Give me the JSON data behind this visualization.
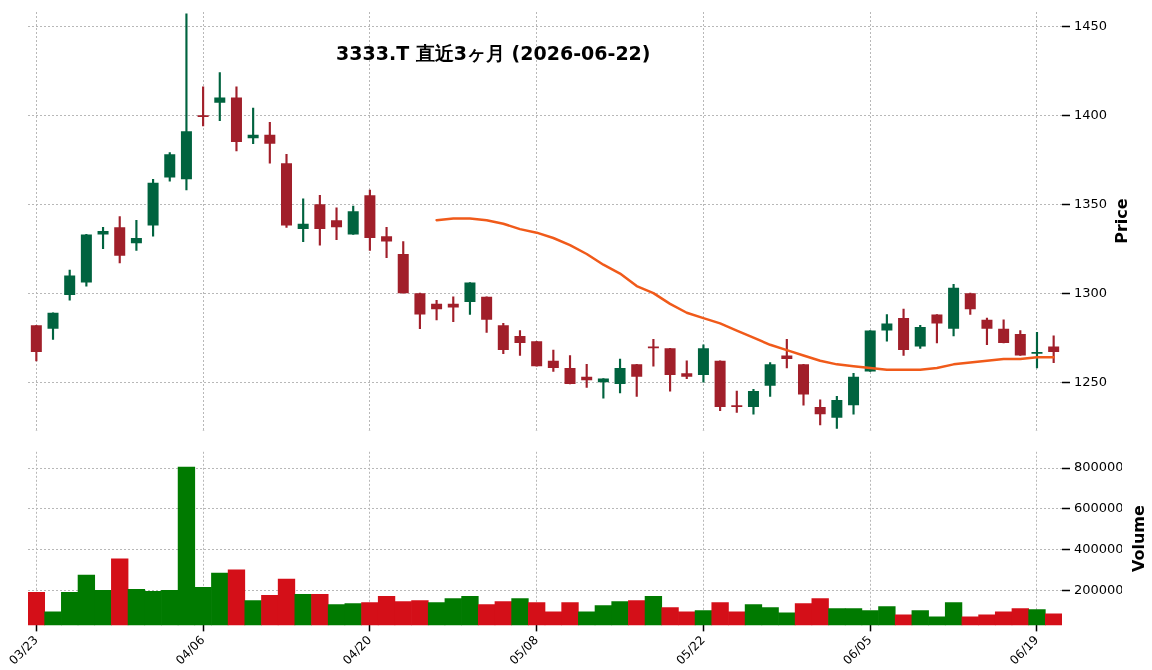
{
  "chart_data": [
    {
      "type": "candlestick",
      "title": "3333.T 直近3ヶ月 (2026-06-22)",
      "ylabel": "Price",
      "categories": [
        null,
        null,
        null,
        null,
        null,
        null,
        null,
        null,
        null,
        null,
        null,
        null,
        null,
        null,
        null,
        null,
        null,
        null,
        null,
        null,
        null,
        null,
        null,
        null,
        null,
        null,
        null,
        null,
        null,
        null,
        null,
        null,
        null,
        null,
        null,
        null,
        null,
        null,
        null,
        null,
        null,
        null,
        null,
        null,
        null,
        null,
        null,
        null,
        null,
        null,
        null,
        null,
        null,
        null,
        null,
        null,
        null,
        null,
        null,
        null,
        null,
        null
      ],
      "ylim": [
        1223,
        1458
      ],
      "yticks": [
        1250,
        1300,
        1350,
        1400,
        1450
      ],
      "grid": true,
      "tick_labels": "y",
      "series": [
        {
          "type": "candlestick",
          "ohlc": [
            [
              1282,
              1282,
              1262,
              1267
            ],
            [
              1280,
              1289,
              1274,
              1289
            ],
            [
              1299,
              1313,
              1296,
              1310
            ],
            [
              1306,
              1333,
              1304,
              1333
            ],
            [
              1333,
              1337,
              1325,
              1335
            ],
            [
              1337,
              1343,
              1317,
              1321
            ],
            [
              1328,
              1341,
              1324,
              1331
            ],
            [
              1338,
              1364,
              1332,
              1362
            ],
            [
              1365,
              1379,
              1363,
              1378
            ],
            [
              1364,
              1457,
              1358,
              1391
            ],
            [
              1400,
              1416,
              1394,
              1399
            ],
            [
              1407,
              1424,
              1397,
              1410
            ],
            [
              1410,
              1416,
              1380,
              1385
            ],
            [
              1387,
              1404,
              1384,
              1389
            ],
            [
              1389,
              1396,
              1373,
              1384
            ],
            [
              1373,
              1378,
              1337,
              1338
            ],
            [
              1336,
              1353,
              1329,
              1339
            ],
            [
              1350,
              1355,
              1327,
              1336
            ],
            [
              1341,
              1348,
              1330,
              1337
            ],
            [
              1333,
              1349,
              1333,
              1346
            ],
            [
              1355,
              1358,
              1324,
              1331
            ],
            [
              1332,
              1337,
              1320,
              1329
            ],
            [
              1322,
              1329,
              1300,
              1300
            ],
            [
              1300,
              1300,
              1280,
              1288
            ],
            [
              1294,
              1296,
              1285,
              1291
            ],
            [
              1294,
              1298,
              1284,
              1292
            ],
            [
              1295,
              1306,
              1288,
              1306
            ],
            [
              1298,
              1298,
              1278,
              1285
            ],
            [
              1282,
              1283,
              1266,
              1268
            ],
            [
              1276,
              1279,
              1265,
              1272
            ],
            [
              1273,
              1273,
              1259,
              1259
            ],
            [
              1262,
              1268,
              1256,
              1258
            ],
            [
              1258,
              1265,
              1249,
              1249
            ],
            [
              1253,
              1260,
              1247,
              1251
            ],
            [
              1250,
              1252,
              1241,
              1252
            ],
            [
              1249,
              1263,
              1244,
              1258
            ],
            [
              1260,
              1260,
              1242,
              1253
            ],
            [
              1270,
              1274,
              1259,
              1269
            ],
            [
              1269,
              1269,
              1245,
              1254
            ],
            [
              1255,
              1262,
              1252,
              1253
            ],
            [
              1254,
              1271,
              1250,
              1269
            ],
            [
              1262,
              1262,
              1234,
              1236
            ],
            [
              1237,
              1245,
              1233,
              1236
            ],
            [
              1236,
              1246,
              1232,
              1245
            ],
            [
              1248,
              1261,
              1242,
              1260
            ],
            [
              1265,
              1274,
              1258,
              1263
            ],
            [
              1260,
              1260,
              1237,
              1243
            ],
            [
              1236,
              1240,
              1226,
              1232
            ],
            [
              1230,
              1242,
              1224,
              1240
            ],
            [
              1237,
              1255,
              1232,
              1253
            ],
            [
              1256,
              1279,
              1256,
              1279
            ],
            [
              1279,
              1288,
              1273,
              1283
            ],
            [
              1286,
              1291,
              1265,
              1268
            ],
            [
              1270,
              1282,
              1269,
              1281
            ],
            [
              1288,
              1288,
              1272,
              1283
            ],
            [
              1280,
              1305,
              1276,
              1303
            ],
            [
              1300,
              1300,
              1288,
              1291
            ],
            [
              1285,
              1286,
              1271,
              1280
            ],
            [
              1280,
              1285,
              1272,
              1272
            ],
            [
              1277,
              1279,
              1265,
              1265
            ],
            [
              1266,
              1278,
              1258,
              1267
            ],
            [
              1270,
              1276,
              1261,
              1267
            ]
          ],
          "colors": [
            "#a11f2a",
            "#00633f",
            "#00633f",
            "#00633f",
            "#00633f",
            "#a11f2a",
            "#00633f",
            "#00633f",
            "#00633f",
            "#00633f",
            "#a11f2a",
            "#00633f",
            "#a11f2a",
            "#00633f",
            "#a11f2a",
            "#a11f2a",
            "#00633f",
            "#a11f2a",
            "#a11f2a",
            "#00633f",
            "#a11f2a",
            "#a11f2a",
            "#a11f2a",
            "#a11f2a",
            "#a11f2a",
            "#a11f2a",
            "#00633f",
            "#a11f2a",
            "#a11f2a",
            "#a11f2a",
            "#a11f2a",
            "#a11f2a",
            "#a11f2a",
            "#a11f2a",
            "#00633f",
            "#00633f",
            "#a11f2a",
            "#a11f2a",
            "#a11f2a",
            "#a11f2a",
            "#00633f",
            "#a11f2a",
            "#a11f2a",
            "#00633f",
            "#00633f",
            "#a11f2a",
            "#a11f2a",
            "#a11f2a",
            "#00633f",
            "#00633f",
            "#00633f",
            "#00633f",
            "#a11f2a",
            "#00633f",
            "#a11f2a",
            "#00633f",
            "#a11f2a",
            "#a11f2a",
            "#a11f2a",
            "#a11f2a",
            "#00633f",
            "#a11f2a"
          ]
        },
        {
          "type": "line",
          "color": "#f05a1a",
          "values": [
            null,
            null,
            null,
            null,
            null,
            null,
            null,
            null,
            null,
            null,
            null,
            null,
            null,
            null,
            null,
            null,
            null,
            null,
            null,
            null,
            null,
            null,
            null,
            null,
            1341,
            1342,
            1342,
            1341,
            1339,
            1336,
            1334,
            1331,
            1327,
            1322,
            1316,
            1311,
            1304,
            1300,
            1294,
            1289,
            1286,
            1283,
            1279,
            1275,
            1271,
            1268,
            1265,
            1262,
            1260,
            1259,
            1258,
            1257,
            1257,
            1257,
            1258,
            1260,
            1261,
            1262,
            1263,
            1263,
            1264,
            1264
          ]
        }
      ]
    },
    {
      "type": "bar",
      "ylabel": "Volume",
      "categories": [
        "03/23",
        null,
        null,
        null,
        null,
        null,
        null,
        null,
        null,
        null,
        "04/06",
        null,
        null,
        null,
        null,
        null,
        null,
        null,
        null,
        null,
        "04/20",
        null,
        null,
        null,
        null,
        null,
        null,
        null,
        null,
        null,
        "05/08",
        null,
        null,
        null,
        null,
        null,
        null,
        null,
        null,
        null,
        "05/22",
        null,
        null,
        null,
        null,
        null,
        null,
        null,
        null,
        null,
        "06/05",
        null,
        null,
        null,
        null,
        null,
        null,
        null,
        null,
        null,
        "06/19",
        null
      ],
      "ylim": [
        28000,
        880000
      ],
      "yticks": [
        200000,
        400000,
        600000,
        800000
      ],
      "grid": true,
      "values": [
        190000,
        95000,
        190000,
        275000,
        200000,
        355000,
        205000,
        195000,
        200000,
        805000,
        215000,
        285000,
        300000,
        150000,
        175000,
        255000,
        180000,
        180000,
        130000,
        135000,
        140000,
        170000,
        145000,
        150000,
        140000,
        160000,
        170000,
        130000,
        145000,
        160000,
        140000,
        95000,
        140000,
        95000,
        125000,
        145000,
        150000,
        170000,
        115000,
        95000,
        100000,
        140000,
        95000,
        130000,
        115000,
        90000,
        135000,
        160000,
        110000,
        110000,
        100000,
        120000,
        80000,
        100000,
        70000,
        140000,
        70000,
        80000,
        95000,
        110000,
        105000,
        85000
      ],
      "colors": [
        "#d40f18",
        "#007a00",
        "#007a00",
        "#007a00",
        "#007a00",
        "#d40f18",
        "#007a00",
        "#007a00",
        "#007a00",
        "#007a00",
        "#007a00",
        "#007a00",
        "#d40f18",
        "#007a00",
        "#d40f18",
        "#d40f18",
        "#007a00",
        "#d40f18",
        "#007a00",
        "#007a00",
        "#d40f18",
        "#d40f18",
        "#d40f18",
        "#d40f18",
        "#007a00",
        "#007a00",
        "#007a00",
        "#d40f18",
        "#d40f18",
        "#007a00",
        "#d40f18",
        "#d40f18",
        "#d40f18",
        "#007a00",
        "#007a00",
        "#007a00",
        "#d40f18",
        "#007a00",
        "#d40f18",
        "#d40f18",
        "#007a00",
        "#d40f18",
        "#d40f18",
        "#007a00",
        "#007a00",
        "#007a00",
        "#d40f18",
        "#d40f18",
        "#007a00",
        "#007a00",
        "#007a00",
        "#007a00",
        "#d40f18",
        "#007a00",
        "#007a00",
        "#007a00",
        "#d40f18",
        "#d40f18",
        "#d40f18",
        "#d40f18",
        "#007a00",
        "#d40f18"
      ]
    }
  ]
}
